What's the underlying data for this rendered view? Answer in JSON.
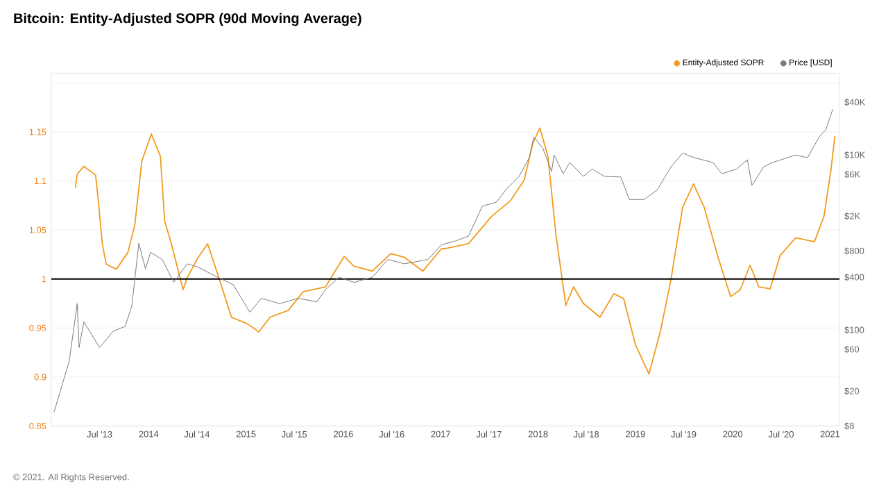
{
  "chart_data": {
    "type": "line",
    "title": "Bitcoin: Entity-Adjusted SOPR (90d Moving Average)",
    "annotations": [
      "© 2021. All Rights Reserved."
    ],
    "series": [
      {
        "name": "Entity-Adjusted SOPR",
        "color": "#f29b1d",
        "x": [
          "2013-04-01",
          "2013-04-08",
          "2013-05-03",
          "2013-06-16",
          "2013-06-27",
          "2013-07-11",
          "2013-07-26",
          "2013-09-02",
          "2013-10-15",
          "2013-11-10",
          "2013-12-06",
          "2014-01-11",
          "2014-02-14",
          "2014-03-02",
          "2014-03-27",
          "2014-05-10",
          "2014-05-25",
          "2014-07-01",
          "2014-08-10",
          "2014-09-24",
          "2014-11-07",
          "2015-01-08",
          "2015-02-18",
          "2015-04-01",
          "2015-06-09",
          "2015-08-03",
          "2015-10-26",
          "2016-01-04",
          "2016-02-10",
          "2016-04-19",
          "2016-06-27",
          "2016-08-18",
          "2016-10-26",
          "2017-01-04",
          "2017-01-19",
          "2017-04-15",
          "2017-07-11",
          "2017-09-20",
          "2017-11-10",
          "2017-12-13",
          "2018-01-08",
          "2018-02-07",
          "2018-03-09",
          "2018-04-15",
          "2018-05-14",
          "2018-06-20",
          "2018-08-21",
          "2018-10-12",
          "2018-11-18",
          "2019-01-01",
          "2019-02-21",
          "2019-04-05",
          "2019-05-14",
          "2019-06-27",
          "2019-08-07",
          "2019-09-16",
          "2019-11-07",
          "2019-12-24",
          "2020-01-29",
          "2020-03-06",
          "2020-04-08",
          "2020-05-21",
          "2020-06-27",
          "2020-08-25",
          "2020-11-03",
          "2020-12-09",
          "2021-01-04",
          "2021-01-19"
        ],
        "values": [
          1.093,
          1.107,
          1.115,
          1.106,
          1.078,
          1.036,
          1.015,
          1.01,
          1.027,
          1.055,
          1.12,
          1.148,
          1.125,
          1.059,
          1.036,
          0.989,
          1.001,
          1.02,
          1.036,
          0.999,
          0.961,
          0.954,
          0.946,
          0.961,
          0.968,
          0.987,
          0.992,
          1.023,
          1.013,
          1.008,
          1.026,
          1.022,
          1.008,
          1.031,
          1.031,
          1.036,
          1.064,
          1.08,
          1.101,
          1.139,
          1.154,
          1.125,
          1.045,
          0.973,
          0.992,
          0.975,
          0.961,
          0.985,
          0.98,
          0.933,
          0.903,
          0.947,
          0.999,
          1.073,
          1.097,
          1.073,
          1.022,
          0.982,
          0.989,
          1.014,
          0.992,
          0.99,
          1.024,
          1.042,
          1.038,
          1.064,
          1.111,
          1.146
        ]
      },
      {
        "name": "Price [USD]",
        "color": "#7a7a7a",
        "axis": "y2",
        "x": [
          "2013-01-11",
          "2013-03-09",
          "2013-04-08",
          "2013-04-15",
          "2013-05-03",
          "2013-07-01",
          "2013-08-21",
          "2013-10-05",
          "2013-10-30",
          "2013-11-25",
          "2013-12-20",
          "2014-01-08",
          "2014-02-21",
          "2014-04-05",
          "2014-05-25",
          "2014-07-01",
          "2014-09-24",
          "2014-11-14",
          "2015-01-15",
          "2015-02-28",
          "2015-05-07",
          "2015-07-15",
          "2015-09-24",
          "2015-10-26",
          "2015-12-16",
          "2016-02-10",
          "2016-04-19",
          "2016-06-16",
          "2016-08-18",
          "2016-11-14",
          "2017-01-04",
          "2017-02-25",
          "2017-04-15",
          "2017-06-06",
          "2017-07-30",
          "2017-09-02",
          "2017-10-22",
          "2017-11-29",
          "2017-12-16",
          "2018-01-19",
          "2018-02-21",
          "2018-03-02",
          "2018-04-05",
          "2018-04-30",
          "2018-06-20",
          "2018-07-23",
          "2018-09-06",
          "2018-11-07",
          "2018-12-09",
          "2019-02-03",
          "2019-03-24",
          "2019-05-14",
          "2019-06-27",
          "2019-08-10",
          "2019-10-19",
          "2019-11-21",
          "2020-01-15",
          "2020-02-25",
          "2020-03-13",
          "2020-04-26",
          "2020-05-29",
          "2020-08-25",
          "2020-10-08",
          "2020-11-21",
          "2020-12-16",
          "2021-01-11"
        ],
        "values": [
          11.5,
          44,
          200,
          63,
          124,
          63,
          97,
          110,
          190,
          980,
          500,
          770,
          640,
          350,
          570,
          530,
          390,
          330,
          160,
          230,
          200,
          230,
          210,
          290,
          400,
          350,
          400,
          640,
          570,
          640,
          940,
          1040,
          1180,
          2600,
          2900,
          4000,
          5700,
          9300,
          16100,
          11900,
          6500,
          10000,
          6100,
          8200,
          5700,
          6900,
          5700,
          5600,
          3100,
          3100,
          4000,
          7300,
          10500,
          9300,
          8200,
          6100,
          6900,
          8800,
          4500,
          7300,
          8200,
          10000,
          9300,
          16100,
          19400,
          33400
        ]
      }
    ],
    "xlim": [
      "2013-01-01",
      "2021-02-05"
    ],
    "xticks": [
      {
        "value": "2013-07-01",
        "label": "Jul '13"
      },
      {
        "value": "2014-01-01",
        "label": "2014"
      },
      {
        "value": "2014-07-01",
        "label": "Jul '14"
      },
      {
        "value": "2015-01-01",
        "label": "2015"
      },
      {
        "value": "2015-07-01",
        "label": "Jul '15"
      },
      {
        "value": "2016-01-01",
        "label": "2016"
      },
      {
        "value": "2016-07-01",
        "label": "Jul '16"
      },
      {
        "value": "2017-01-01",
        "label": "2017"
      },
      {
        "value": "2017-07-01",
        "label": "Jul '17"
      },
      {
        "value": "2018-01-01",
        "label": "2018"
      },
      {
        "value": "2018-07-01",
        "label": "Jul '18"
      },
      {
        "value": "2019-01-01",
        "label": "2019"
      },
      {
        "value": "2019-07-01",
        "label": "Jul '19"
      },
      {
        "value": "2020-01-01",
        "label": "2020"
      },
      {
        "value": "2020-07-01",
        "label": "Jul '20"
      },
      {
        "value": "2021-01-01",
        "label": "2021"
      }
    ],
    "ylim": [
      0.85,
      1.21
    ],
    "yticks": [
      0.85,
      0.9,
      0.95,
      1,
      1.05,
      1.1,
      1.15,
      {
        "value": 1.2,
        "label": null
      }
    ],
    "y2lim": [
      8,
      86000
    ],
    "y2ticks": [
      {
        "value": 8,
        "label": "$8"
      },
      {
        "value": 20,
        "label": "$20"
      },
      {
        "value": 60,
        "label": "$60"
      },
      {
        "value": 100,
        "label": "$100"
      },
      {
        "value": 400,
        "label": "$400"
      },
      {
        "value": 800,
        "label": "$800"
      },
      {
        "value": 2000,
        "label": "$2K"
      },
      {
        "value": 6000,
        "label": "$6K"
      },
      {
        "value": 10000,
        "label": "$10K"
      },
      {
        "value": 40000,
        "label": "$40K"
      }
    ],
    "log": "y2",
    "ref_lines": [
      {
        "axis": "y",
        "value": 1,
        "color": "#000000"
      }
    ],
    "grid": "y",
    "legend": "top right",
    "marker": "none",
    "line_style": "solid"
  }
}
